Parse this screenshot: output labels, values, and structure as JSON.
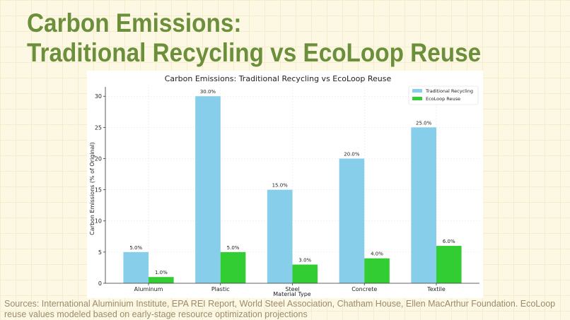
{
  "slide": {
    "title_line1": "Carbon Emissions:",
    "title_line2": "Traditional Recycling vs EcoLoop Reuse",
    "sources": "Sources: International Aluminium Institute, EPA REI Report, World Steel Association, Chatham House, Ellen MacArthur Foundation. EcoLoop reuse values modeled based on early-stage resource optimization projections"
  },
  "chart_data": {
    "type": "bar",
    "title": "Carbon Emissions: Traditional Recycling vs EcoLoop Reuse",
    "xlabel": "Material Type",
    "ylabel": "Carbon Emissions (% of Original)",
    "categories": [
      "Aluminum",
      "Plastic",
      "Steel",
      "Concrete",
      "Textile"
    ],
    "series": [
      {
        "name": "Traditional Recycling",
        "values": [
          5,
          30,
          15,
          20,
          25
        ],
        "labels": [
          "5.0%",
          "30.0%",
          "15.0%",
          "20.0%",
          "25.0%"
        ],
        "color": "#87ceeb"
      },
      {
        "name": "EcoLoop Reuse",
        "values": [
          1,
          5,
          3,
          4,
          6
        ],
        "labels": [
          "1.0%",
          "5.0%",
          "3.0%",
          "4.0%",
          "6.0%"
        ],
        "color": "#32cd32"
      }
    ],
    "ylim": [
      0,
      31.5
    ],
    "yticks": [
      0,
      5,
      10,
      15,
      20,
      25,
      30
    ],
    "grid": true,
    "legend": "top-right"
  }
}
